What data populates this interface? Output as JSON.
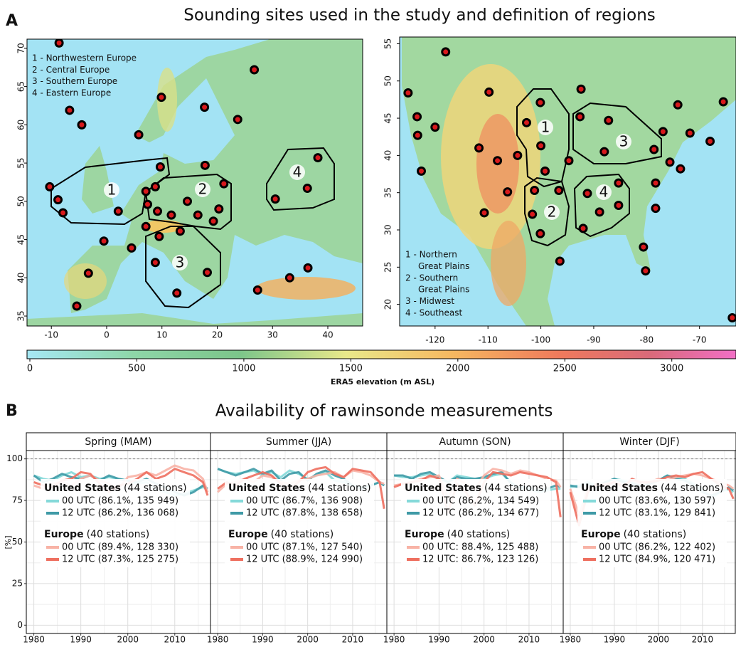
{
  "panel_a": {
    "letter": "A",
    "title": "Sounding sites used in the study and definition of regions",
    "maps": [
      {
        "type": "map",
        "legend": [
          "1 - Northwestern Europe",
          "2 - Central Europe",
          "3 - Southern Europe",
          "4 - Eastern Europe"
        ],
        "region_labels": [
          "1",
          "2",
          "3",
          "4"
        ],
        "xlim": [
          -14.4,
          46.3
        ],
        "ylim": [
          33.7,
          71.2
        ],
        "xticks": [
          -10,
          0,
          10,
          20,
          30,
          40
        ],
        "yticks": [
          35,
          40,
          45,
          50,
          55,
          60,
          65,
          70
        ],
        "stations": {
          "lon": [
            -8.6,
            -6.7,
            -4.5,
            9.9,
            5.8,
            17.7,
            26.7,
            23.7,
            -10.3,
            9.7,
            17.8,
            -8.8,
            -7.9,
            2.1,
            -0.5,
            8.8,
            7.1,
            7.4,
            9.2,
            11.7,
            14.6,
            16.5,
            19.3,
            20.3,
            21.2,
            7.1,
            9.5,
            13.3,
            4.5,
            8.8,
            18.2,
            12.7,
            -3.3,
            -5.4,
            27.3,
            33.1,
            36.4,
            38.2,
            30.5,
            36.3
          ],
          "lat": [
            70.7,
            61.9,
            60.0,
            63.6,
            58.7,
            62.3,
            67.2,
            60.7,
            51.9,
            54.5,
            54.7,
            50.2,
            48.5,
            48.7,
            44.8,
            51.9,
            51.3,
            49.6,
            48.7,
            48.2,
            50.0,
            48.2,
            47.4,
            49.0,
            52.3,
            46.7,
            45.4,
            46.1,
            43.9,
            42.0,
            40.7,
            38.0,
            40.6,
            36.3,
            38.4,
            40.0,
            41.3,
            55.7,
            50.3,
            51.7
          ]
        }
      },
      {
        "type": "map",
        "legend": [
          "1 - Northern",
          "Great Plains",
          "2 - Southern",
          "Great Plains",
          "3 - Midwest",
          "4 - Southeast"
        ],
        "region_labels": [
          "1",
          "2",
          "3",
          "4"
        ],
        "xlim": [
          -126.7,
          -63.1
        ],
        "ylim": [
          17.1,
          55.9
        ],
        "xticks": [
          -120,
          -110,
          -100,
          -90,
          -80,
          -70
        ],
        "yticks": [
          20,
          25,
          30,
          35,
          40,
          45,
          50,
          55
        ],
        "stations": {
          "lon": [
            -118.0,
            -125.1,
            -123.4,
            -123.3,
            -122.6,
            -120.0,
            -109.8,
            -111.7,
            -108.2,
            -104.4,
            -102.7,
            -100.1,
            -100.0,
            -99.2,
            -94.7,
            -106.3,
            -110.7,
            -101.2,
            -96.6,
            -101.6,
            -100.1,
            -96.4,
            -92.4,
            -92.6,
            -87.2,
            -88.0,
            -91.2,
            -88.9,
            -85.3,
            -85.3,
            -92.0,
            -76.9,
            -78.6,
            -74.1,
            -71.8,
            -68.0,
            -65.5,
            -75.6,
            -73.6,
            -78.3,
            -78.3,
            -80.6,
            -80.2,
            -63.8
          ],
          "lat": [
            53.9,
            48.4,
            45.2,
            42.7,
            37.9,
            43.8,
            48.5,
            41.0,
            39.3,
            40.0,
            44.4,
            47.1,
            41.3,
            37.9,
            39.3,
            35.1,
            32.3,
            35.3,
            35.3,
            32.1,
            29.5,
            25.8,
            48.9,
            45.2,
            44.7,
            40.5,
            34.9,
            32.4,
            33.3,
            36.3,
            30.2,
            43.2,
            40.8,
            46.8,
            43.0,
            41.9,
            47.2,
            39.1,
            38.2,
            36.3,
            32.9,
            27.7,
            24.5,
            18.2
          ]
        }
      }
    ],
    "colorbar": {
      "label": "ERA5 elevation (m ASL)",
      "lim": [
        0,
        3300
      ],
      "ticks": [
        0,
        500,
        1000,
        1500,
        2000,
        2500,
        3000
      ]
    }
  },
  "panel_b": {
    "letter": "B",
    "title": "Availability of rawinsonde measurements",
    "y_label": "[%]"
  },
  "chart_data": [
    {
      "type": "line",
      "title": "Spring (MAM)",
      "x": [
        1980,
        1982,
        1984,
        1986,
        1988,
        1990,
        1992,
        1994,
        1996,
        1998,
        2000,
        2002,
        2004,
        2006,
        2008,
        2010,
        2012,
        2014,
        2016,
        2017
      ],
      "xlim": [
        1978.4,
        2017.6
      ],
      "xticks": [
        1980,
        1990,
        2000,
        2010
      ],
      "ylim": [
        -5,
        105
      ],
      "yticks": [
        0,
        25,
        50,
        75,
        100
      ],
      "reference_line": 100,
      "grid": true,
      "groups": [
        {
          "name": "United States",
          "note": "(44 stations)",
          "series": [
            {
              "name": "00 UTC (86.1%, 135 949)",
              "color": "#84d9d9",
              "values": [
                90,
                88,
                87,
                90,
                92,
                89,
                90,
                88,
                89,
                88,
                87,
                85,
                86,
                82,
                80,
                78,
                79,
                81,
                83,
                82
              ]
            },
            {
              "name": "12 UTC (86.2%, 136 068)",
              "color": "#3f9aa6",
              "values": [
                90,
                86,
                88,
                91,
                89,
                88,
                90,
                87,
                90,
                88,
                87,
                86,
                88,
                85,
                83,
                80,
                78,
                80,
                84,
                82
              ]
            }
          ]
        },
        {
          "name": "Europe",
          "note": "(40 stations)",
          "series": [
            {
              "name": "00 UTC (89.4%, 128 330)",
              "color": "#f8b3a6",
              "values": [
                84,
                82,
                85,
                86,
                84,
                88,
                90,
                87,
                85,
                82,
                89,
                90,
                92,
                90,
                93,
                96,
                94,
                93,
                88,
                80
              ]
            },
            {
              "name": "12 UTC (87.3%, 125 275)",
              "color": "#ee6f5f",
              "values": [
                86,
                84,
                83,
                87,
                88,
                92,
                91,
                85,
                80,
                84,
                85,
                88,
                92,
                88,
                90,
                94,
                92,
                90,
                86,
                78
              ]
            }
          ]
        }
      ]
    },
    {
      "type": "line",
      "title": "Summer (JJA)",
      "x": [
        1980,
        1982,
        1984,
        1986,
        1988,
        1990,
        1992,
        1994,
        1996,
        1998,
        2000,
        2002,
        2004,
        2006,
        2008,
        2010,
        2012,
        2014,
        2016,
        2017
      ],
      "xlim": [
        1978.4,
        2017.6
      ],
      "xticks": [
        1980,
        1990,
        2000,
        2010
      ],
      "ylim": [
        -5,
        105
      ],
      "yticks": [
        0,
        25,
        50,
        75,
        100
      ],
      "reference_line": 100,
      "grid": true,
      "groups": [
        {
          "name": "United States",
          "note": "(44 stations)",
          "series": [
            {
              "name": "00 UTC (86.7%, 136 908)",
              "color": "#84d9d9",
              "values": [
                94,
                92,
                91,
                92,
                93,
                90,
                92,
                89,
                93,
                91,
                88,
                90,
                92,
                87,
                86,
                84,
                83,
                84,
                86,
                84
              ]
            },
            {
              "name": "12 UTC (87.8%, 138 658)",
              "color": "#3f9aa6",
              "values": [
                94,
                92,
                90,
                92,
                94,
                91,
                93,
                87,
                91,
                92,
                87,
                91,
                93,
                90,
                88,
                84,
                82,
                84,
                86,
                84
              ]
            }
          ]
        },
        {
          "name": "Europe",
          "note": "(40 stations)",
          "series": [
            {
              "name": "00 UTC (87.1%, 127 540)",
              "color": "#f8b3a6",
              "values": [
                80,
                85,
                86,
                88,
                86,
                90,
                89,
                86,
                85,
                87,
                88,
                90,
                91,
                92,
                89,
                93,
                92,
                90,
                86,
                85
              ]
            },
            {
              "name": "12 UTC (88.9%, 124 990)",
              "color": "#ee6f5f",
              "values": [
                82,
                86,
                84,
                88,
                90,
                92,
                90,
                85,
                82,
                86,
                92,
                94,
                95,
                91,
                89,
                94,
                93,
                92,
                86,
                70
              ]
            }
          ]
        }
      ]
    },
    {
      "type": "line",
      "title": "Autumn (SON)",
      "x": [
        1980,
        1982,
        1984,
        1986,
        1988,
        1990,
        1992,
        1994,
        1996,
        1998,
        2000,
        2002,
        2004,
        2006,
        2008,
        2010,
        2012,
        2014,
        2016,
        2017
      ],
      "xlim": [
        1978.4,
        2017.6
      ],
      "xticks": [
        1980,
        1990,
        2000,
        2010
      ],
      "ylim": [
        -5,
        105
      ],
      "yticks": [
        0,
        25,
        50,
        75,
        100
      ],
      "reference_line": 100,
      "grid": true,
      "groups": [
        {
          "name": "United States",
          "note": "(44 stations)",
          "series": [
            {
              "name": "00 UTC (86.2%, 134 549)",
              "color": "#84d9d9",
              "values": [
                90,
                89,
                89,
                90,
                91,
                88,
                86,
                90,
                89,
                88,
                88,
                90,
                91,
                86,
                82,
                82,
                80,
                81,
                82,
                82
              ]
            },
            {
              "name": "12 UTC (86.2%, 134 677)",
              "color": "#3f9aa6",
              "values": [
                90,
                90,
                88,
                91,
                92,
                89,
                86,
                89,
                88,
                88,
                89,
                91,
                92,
                85,
                83,
                83,
                81,
                82,
                84,
                83
              ]
            }
          ]
        },
        {
          "name": "Europe",
          "note": "(40 stations)",
          "series": [
            {
              "name": "00 UTC: 88.4%, 125 488)",
              "color": "#f8b3a6",
              "values": [
                84,
                85,
                86,
                88,
                89,
                90,
                76,
                88,
                85,
                82,
                90,
                94,
                93,
                91,
                93,
                92,
                90,
                88,
                87,
                83
              ]
            },
            {
              "name": "12 UTC: 86.7%, 123 126)",
              "color": "#ee6f5f",
              "values": [
                83,
                85,
                86,
                87,
                90,
                88,
                68,
                85,
                80,
                72,
                86,
                92,
                91,
                90,
                92,
                91,
                90,
                89,
                86,
                65
              ]
            }
          ]
        }
      ]
    },
    {
      "type": "line",
      "title": "Winter (DJF)",
      "x": [
        1980,
        1982,
        1984,
        1986,
        1988,
        1990,
        1992,
        1994,
        1996,
        1998,
        2000,
        2002,
        2004,
        2006,
        2008,
        2010,
        2012,
        2014,
        2016,
        2017
      ],
      "xlim": [
        1978.4,
        2017.6
      ],
      "xticks": [
        1980,
        1990,
        2000,
        2010
      ],
      "ylim": [
        -5,
        105
      ],
      "yticks": [
        0,
        25,
        50,
        75,
        100
      ],
      "reference_line": 100,
      "grid": true,
      "groups": [
        {
          "name": "United States",
          "note": "(44 stations)",
          "series": [
            {
              "name": "00 UTC (83.6%, 130 597)",
              "color": "#84d9d9",
              "values": [
                83,
                84,
                86,
                84,
                86,
                88,
                87,
                86,
                85,
                86,
                87,
                90,
                89,
                88,
                85,
                82,
                76,
                80,
                82,
                80
              ]
            },
            {
              "name": "12 UTC (83.1%, 129 841)",
              "color": "#3f9aa6",
              "values": [
                84,
                83,
                85,
                83,
                86,
                88,
                86,
                85,
                84,
                85,
                87,
                90,
                88,
                87,
                84,
                80,
                78,
                80,
                83,
                81
              ]
            }
          ]
        },
        {
          "name": "Europe",
          "note": "(40 stations)",
          "series": [
            {
              "name": "00 UTC (86.2%, 122 402)",
              "color": "#f8b3a6",
              "values": [
                82,
                66,
                82,
                84,
                85,
                86,
                84,
                87,
                85,
                86,
                88,
                87,
                89,
                90,
                91,
                90,
                88,
                86,
                84,
                82
              ]
            },
            {
              "name": "12 UTC (84.9%, 120 471)",
              "color": "#ee6f5f",
              "values": [
                80,
                60,
                80,
                85,
                84,
                86,
                83,
                88,
                86,
                86,
                87,
                89,
                90,
                89,
                91,
                92,
                88,
                84,
                82,
                76
              ]
            }
          ]
        }
      ]
    }
  ]
}
